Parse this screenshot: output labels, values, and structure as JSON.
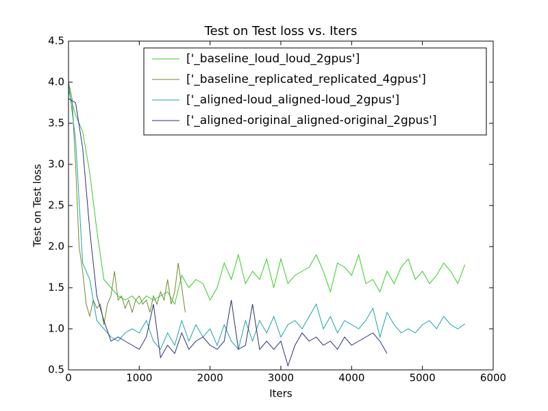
{
  "chart_data": {
    "type": "line",
    "title": "Test on Test loss  vs. Iters",
    "x_label": "Iters",
    "y_label": "Test on Test loss",
    "xlim": [
      0,
      6000
    ],
    "ylim": [
      0.5,
      4.5
    ],
    "xticks": [
      0,
      1000,
      2000,
      3000,
      4000,
      5000,
      6000
    ],
    "yticks": [
      0.5,
      {
        "value": 1,
        "label": "1.0"
      },
      1.5,
      {
        "value": 2,
        "label": "2.0"
      },
      2.5,
      {
        "value": 3,
        "label": "3.0"
      },
      3.5,
      {
        "value": 4,
        "label": "4.0"
      },
      4.5
    ],
    "legend": "upper right",
    "series": [
      {
        "name": "['_baseline_loud_loud_2gpus']",
        "color": "#33cc22",
        "x": [
          0,
          100,
          200,
          300,
          400,
          500,
          600,
          700,
          800,
          900,
          1000,
          1100,
          1200,
          1300,
          1400,
          1500,
          1600,
          1700,
          1800,
          1900,
          2000,
          2100,
          2200,
          2300,
          2400,
          2500,
          2600,
          2700,
          2800,
          2900,
          3000,
          3100,
          3200,
          3300,
          3400,
          3500,
          3600,
          3700,
          3800,
          3900,
          4000,
          4100,
          4200,
          4300,
          4400,
          4500,
          4600,
          4700,
          4800,
          4900,
          5000,
          5100,
          5200,
          5300,
          5400,
          5500,
          5600
        ],
        "values": [
          3.9,
          3.6,
          3.4,
          2.9,
          2.2,
          1.6,
          1.5,
          1.4,
          1.35,
          1.4,
          1.3,
          1.4,
          1.35,
          1.4,
          1.45,
          1.3,
          1.65,
          1.5,
          1.6,
          1.55,
          1.35,
          1.5,
          1.8,
          1.6,
          1.9,
          1.55,
          1.7,
          1.6,
          1.85,
          1.5,
          1.85,
          1.55,
          1.65,
          1.7,
          1.75,
          1.9,
          1.7,
          1.45,
          1.8,
          1.75,
          1.65,
          1.9,
          1.55,
          1.6,
          1.45,
          1.7,
          1.55,
          1.75,
          1.85,
          1.6,
          1.7,
          1.55,
          1.65,
          1.8,
          1.7,
          1.55,
          1.78
        ]
      },
      {
        "name": "['_baseline_replicated_replicated_4gpus']",
        "color": "#6b8a2a",
        "x": [
          0,
          50,
          100,
          150,
          200,
          250,
          300,
          350,
          400,
          450,
          500,
          550,
          600,
          650,
          700,
          750,
          800,
          850,
          900,
          950,
          1000,
          1050,
          1100,
          1150,
          1200,
          1250,
          1300,
          1350,
          1400,
          1450,
          1500,
          1550,
          1600,
          1650
        ],
        "values": [
          4.0,
          3.8,
          3.0,
          2.0,
          1.7,
          1.3,
          1.15,
          1.35,
          1.25,
          1.3,
          1.05,
          1.3,
          1.4,
          1.7,
          1.35,
          1.4,
          1.25,
          1.35,
          1.2,
          1.35,
          1.4,
          1.3,
          1.35,
          1.2,
          1.4,
          1.3,
          1.45,
          1.35,
          1.6,
          1.3,
          1.45,
          1.8,
          1.5,
          1.2
        ]
      },
      {
        "name": "['_aligned-loud_aligned-loud_2gpus']",
        "color": "#1aa3a3",
        "x": [
          0,
          100,
          200,
          300,
          400,
          500,
          600,
          700,
          800,
          900,
          1000,
          1100,
          1200,
          1300,
          1400,
          1500,
          1600,
          1700,
          1800,
          1900,
          2000,
          2100,
          2200,
          2300,
          2400,
          2500,
          2600,
          2700,
          2800,
          2900,
          3000,
          3100,
          3200,
          3300,
          3400,
          3500,
          3600,
          3700,
          3800,
          3900,
          4000,
          4100,
          4200,
          4300,
          4400,
          4500,
          4600,
          4700,
          4800,
          4900,
          5000,
          5100,
          5200,
          5300,
          5400,
          5500,
          5600
        ],
        "values": [
          4.0,
          3.3,
          1.8,
          1.6,
          1.1,
          1.0,
          0.9,
          0.85,
          0.95,
          1.0,
          0.95,
          1.1,
          0.85,
          0.75,
          0.95,
          0.8,
          1.1,
          0.85,
          1.05,
          0.9,
          1.0,
          0.8,
          1.05,
          0.85,
          0.75,
          1.1,
          0.85,
          1.1,
          0.95,
          1.15,
          0.9,
          1.05,
          1.1,
          1.0,
          1.15,
          1.3,
          1.0,
          1.15,
          0.95,
          1.1,
          1.05,
          1.0,
          1.1,
          1.25,
          0.9,
          1.2,
          1.05,
          0.95,
          1.0,
          0.95,
          1.05,
          1.1,
          1.0,
          1.15,
          1.05,
          1.0,
          1.06
        ]
      },
      {
        "name": "['_aligned-original_aligned-original_2gpus']",
        "color": "#2b2b80",
        "x": [
          0,
          100,
          200,
          300,
          400,
          500,
          600,
          700,
          800,
          900,
          1000,
          1100,
          1200,
          1300,
          1400,
          1500,
          1600,
          1700,
          1800,
          1900,
          2000,
          2100,
          2200,
          2300,
          2400,
          2500,
          2600,
          2700,
          2800,
          2900,
          3000,
          3100,
          3200,
          3300,
          3400,
          3500,
          3600,
          3700,
          3800,
          3900,
          4000,
          4100,
          4200,
          4300,
          4400,
          4500
        ],
        "values": [
          3.8,
          3.75,
          3.2,
          2.2,
          1.4,
          1.1,
          0.85,
          0.9,
          0.85,
          0.8,
          0.75,
          0.9,
          1.3,
          0.65,
          0.8,
          0.7,
          0.95,
          0.75,
          0.85,
          0.9,
          0.8,
          0.75,
          0.85,
          1.35,
          0.75,
          0.8,
          1.3,
          0.75,
          0.85,
          0.75,
          0.85,
          0.55,
          0.8,
          0.95,
          0.85,
          0.9,
          0.8,
          0.85,
          0.75,
          0.9,
          0.8,
          0.85,
          0.9,
          0.95,
          0.85,
          0.7
        ]
      }
    ]
  }
}
